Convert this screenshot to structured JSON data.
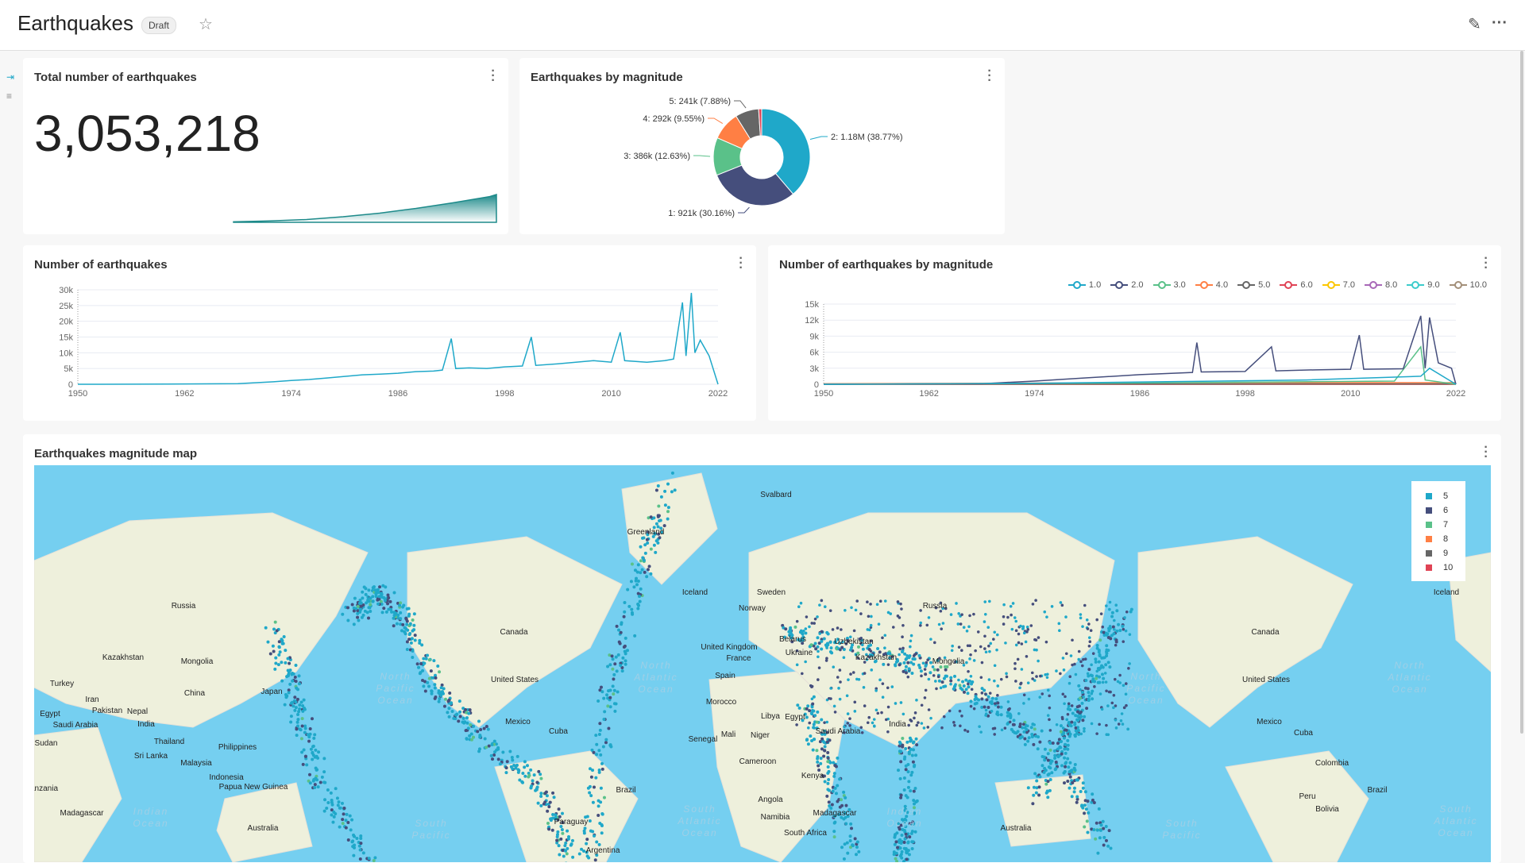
{
  "header": {
    "title": "Earthquakes",
    "badge": "Draft",
    "star_icon": "star-icon",
    "edit_icon": "pencil-icon",
    "more_icon": "more-horizontal-icon"
  },
  "rail": {
    "expand_icon": "expand-icon",
    "filter_icon": "filter-icon"
  },
  "cards": {
    "total": {
      "title": "Total number of earthquakes",
      "value": "3,053,218"
    },
    "pie": {
      "title": "Earthquakes by magnitude"
    },
    "line": {
      "title": "Number of earthquakes"
    },
    "multi": {
      "title": "Number of earthquakes by magnitude"
    },
    "map": {
      "title": "Earthquakes magnitude map",
      "legend": [
        {
          "label": "5",
          "color": "#1fa8c9"
        },
        {
          "label": "6",
          "color": "#454e7c"
        },
        {
          "label": "7",
          "color": "#5ac189"
        },
        {
          "label": "8",
          "color": "#ff7f44"
        },
        {
          "label": "9",
          "color": "#666666"
        },
        {
          "label": "10",
          "color": "#e04355"
        }
      ],
      "labels": [
        "Greenland",
        "Svalbard",
        "Russia",
        "Russia",
        "Canada",
        "Canada",
        "United States",
        "United States",
        "Kazakhstan",
        "Kazakhstan",
        "Mongolia",
        "Mongolia",
        "China",
        "Japan",
        "India",
        "India",
        "Australia",
        "Australia",
        "Brazil",
        "Brazil",
        "Libya",
        "Egypt",
        "Iceland",
        "Iceland",
        "Norway",
        "Sweden",
        "Mexico",
        "Mexico",
        "Colombia",
        "Indonesia",
        "Madagascar",
        "Madagascar",
        "Sudan",
        "Ukraine",
        "Belarus",
        "Saudi Arabia",
        "Saudi Arabia",
        "Peru",
        "Bolivia",
        "Cuba",
        "Cuba",
        "Turkey",
        "Iran",
        "Pakistan",
        "Nepal",
        "Thailand",
        "Philippines",
        "Malaysia",
        "Papua New Guinea",
        "Sri Lanka",
        "Kenya",
        "Angola",
        "Namibia",
        "South Africa",
        "Senegal",
        "Mali",
        "Niger",
        "Cameroon",
        "United Kingdom",
        "France",
        "Spain",
        "Morocco",
        "Uzbekistan",
        "Paraguay",
        "Argentina",
        "Egypt",
        "Tanzania"
      ],
      "oceans": [
        "North Pacific Ocean",
        "North Atlantic Ocean",
        "Indian Ocean",
        "South Atlantic Ocean",
        "North Pacific Ocean",
        "North Atlantic Ocean",
        "South Pacific",
        "South Pacific",
        "Indian Ocean",
        "South Atlantic Ocean"
      ]
    }
  },
  "chart_data": [
    {
      "type": "area",
      "title": "Total number of earthquakes",
      "note_value": 3053218,
      "x": [
        1950,
        1960,
        1970,
        1980,
        1990,
        2000,
        2010,
        2020,
        2022
      ],
      "values": [
        0.02,
        0.05,
        0.1,
        0.2,
        0.33,
        0.5,
        0.7,
        0.92,
        1.0
      ],
      "color": "#1d8a8a"
    },
    {
      "type": "pie",
      "title": "Earthquakes by magnitude",
      "donut": true,
      "slices": [
        {
          "label": "2: 1.18M (38.77%)",
          "value": 38.77,
          "color": "#1fa8c9"
        },
        {
          "label": "1: 921k (30.16%)",
          "value": 30.16,
          "color": "#454e7c"
        },
        {
          "label": "3: 386k (12.63%)",
          "value": 12.63,
          "color": "#5ac189"
        },
        {
          "label": "4: 292k (9.55%)",
          "value": 9.55,
          "color": "#ff7f44"
        },
        {
          "label": "5: 241k (7.88%)",
          "value": 7.88,
          "color": "#666666"
        },
        {
          "label": "",
          "value": 1.01,
          "color": "#e04355"
        }
      ]
    },
    {
      "type": "line",
      "title": "Number of earthquakes",
      "xlim": [
        1950,
        2022
      ],
      "ylim": [
        0,
        30000
      ],
      "yticks": [
        "0",
        "5k",
        "10k",
        "15k",
        "20k",
        "25k",
        "30k"
      ],
      "xticks": [
        "1950",
        "1962",
        "1974",
        "1986",
        "1998",
        "2010",
        "2022"
      ],
      "color": "#1fa8c9",
      "points": [
        [
          1950,
          0
        ],
        [
          1960,
          50
        ],
        [
          1968,
          200
        ],
        [
          1972,
          800
        ],
        [
          1974,
          1200
        ],
        [
          1976,
          1500
        ],
        [
          1978,
          2000
        ],
        [
          1980,
          2500
        ],
        [
          1982,
          3000
        ],
        [
          1984,
          3200
        ],
        [
          1986,
          3500
        ],
        [
          1988,
          4000
        ],
        [
          1990,
          4200
        ],
        [
          1991,
          4500
        ],
        [
          1992,
          14500
        ],
        [
          1992.5,
          5000
        ],
        [
          1994,
          5200
        ],
        [
          1996,
          5000
        ],
        [
          1998,
          5500
        ],
        [
          2000,
          5800
        ],
        [
          2001,
          15000
        ],
        [
          2001.5,
          6000
        ],
        [
          2004,
          6500
        ],
        [
          2006,
          7000
        ],
        [
          2008,
          7500
        ],
        [
          2010,
          7000
        ],
        [
          2011,
          16500
        ],
        [
          2011.5,
          7500
        ],
        [
          2014,
          7000
        ],
        [
          2016,
          7500
        ],
        [
          2017,
          8000
        ],
        [
          2018,
          26000
        ],
        [
          2018.4,
          9000
        ],
        [
          2019,
          29000
        ],
        [
          2019.4,
          10000
        ],
        [
          2020,
          14000
        ],
        [
          2021,
          9000
        ],
        [
          2022,
          0
        ]
      ]
    },
    {
      "type": "line",
      "title": "Number of earthquakes by magnitude",
      "xlim": [
        1950,
        2022
      ],
      "ylim": [
        0,
        15000
      ],
      "yticks": [
        "0",
        "3k",
        "6k",
        "9k",
        "12k",
        "15k"
      ],
      "xticks": [
        "1950",
        "1962",
        "1974",
        "1986",
        "1998",
        "2010",
        "2022"
      ],
      "series": [
        {
          "name": "1.0",
          "color": "#1fa8c9",
          "points": [
            [
              1950,
              0
            ],
            [
              1975,
              200
            ],
            [
              1990,
              500
            ],
            [
              2005,
              800
            ],
            [
              2018,
              1500
            ],
            [
              2019,
              3000
            ],
            [
              2022,
              0
            ]
          ]
        },
        {
          "name": "2.0",
          "color": "#454e7c",
          "points": [
            [
              1950,
              0
            ],
            [
              1968,
              100
            ],
            [
              1974,
              600
            ],
            [
              1980,
              1200
            ],
            [
              1986,
              1800
            ],
            [
              1992,
              2200
            ],
            [
              1992.5,
              7800
            ],
            [
              1993,
              2300
            ],
            [
              1998,
              2400
            ],
            [
              2001,
              7000
            ],
            [
              2001.5,
              2500
            ],
            [
              2006,
              2700
            ],
            [
              2010,
              2800
            ],
            [
              2011,
              9200
            ],
            [
              2011.5,
              2800
            ],
            [
              2016,
              2900
            ],
            [
              2018,
              12800
            ],
            [
              2018.5,
              3000
            ],
            [
              2019,
              12500
            ],
            [
              2020,
              4000
            ],
            [
              2021.5,
              3000
            ],
            [
              2022,
              0
            ]
          ]
        },
        {
          "name": "3.0",
          "color": "#5ac189",
          "points": [
            [
              1950,
              0
            ],
            [
              1980,
              200
            ],
            [
              2000,
              400
            ],
            [
              2015,
              600
            ],
            [
              2018,
              7000
            ],
            [
              2018.5,
              800
            ],
            [
              2022,
              0
            ]
          ]
        },
        {
          "name": "4.0",
          "color": "#ff7f44",
          "points": [
            [
              1950,
              100
            ],
            [
              1990,
              300
            ],
            [
              2022,
              300
            ]
          ]
        },
        {
          "name": "5.0",
          "color": "#666666",
          "points": [
            [
              1950,
              50
            ],
            [
              2022,
              100
            ]
          ]
        },
        {
          "name": "6.0",
          "color": "#e04355",
          "points": [
            [
              1950,
              20
            ],
            [
              2022,
              20
            ]
          ]
        },
        {
          "name": "7.0",
          "color": "#fcc700",
          "points": [
            [
              1950,
              10
            ],
            [
              2022,
              10
            ]
          ]
        },
        {
          "name": "8.0",
          "color": "#a868b7",
          "points": [
            [
              1950,
              0
            ],
            [
              2022,
              0
            ]
          ]
        },
        {
          "name": "9.0",
          "color": "#3ccccb",
          "points": [
            [
              1950,
              0
            ],
            [
              2022,
              0
            ]
          ]
        },
        {
          "name": "10.0",
          "color": "#a38f79",
          "points": [
            [
              1950,
              0
            ],
            [
              2022,
              0
            ]
          ]
        }
      ]
    }
  ]
}
